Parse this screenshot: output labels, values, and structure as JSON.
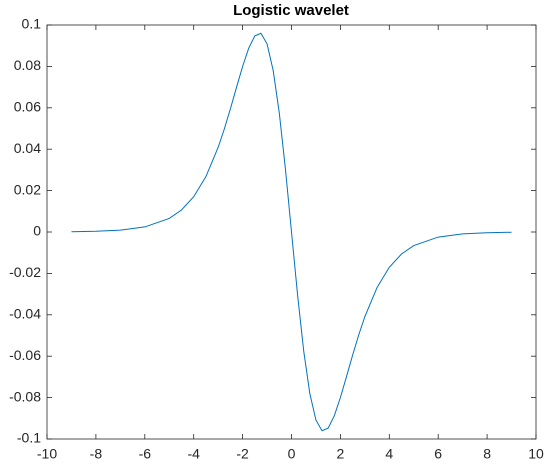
{
  "chart_data": {
    "type": "line",
    "title": "Logistic wavelet",
    "x": [
      -9,
      -8,
      -7,
      -6,
      -5,
      -4.5,
      -4,
      -3.5,
      -3,
      -2.75,
      -2.5,
      -2.25,
      -2,
      -1.75,
      -1.5,
      -1.25,
      -1,
      -0.75,
      -0.5,
      -0.25,
      0,
      0.25,
      0.5,
      0.75,
      1,
      1.25,
      1.5,
      1.75,
      2,
      2.25,
      2.5,
      2.75,
      3,
      3.5,
      4,
      4.5,
      5,
      6,
      7,
      8,
      9
    ],
    "series": [
      {
        "color": "#0072bd",
        "values": [
          0.000123,
          0.000335,
          0.00091,
          0.00245,
          0.00656,
          0.01063,
          0.01703,
          0.02678,
          0.04089,
          0.0497,
          0.05947,
          0.06984,
          0.07996,
          0.0888,
          0.09473,
          0.096,
          0.09086,
          0.07808,
          0.05756,
          0.03061,
          0,
          -0.03061,
          -0.05756,
          -0.07808,
          -0.09086,
          -0.096,
          -0.09473,
          -0.0888,
          -0.07996,
          -0.06984,
          -0.05947,
          -0.0497,
          -0.04089,
          -0.02678,
          -0.01703,
          -0.01063,
          -0.00656,
          -0.00245,
          -0.00091,
          -0.000335,
          -0.000123
        ]
      }
    ],
    "xlim": [
      -10,
      10
    ],
    "xticks": [
      -10,
      -8,
      -6,
      -4,
      -2,
      0,
      2,
      4,
      6,
      8,
      10
    ],
    "ylim": [
      -0.1,
      0.1
    ],
    "yticks": [
      -0.1,
      -0.08,
      -0.06,
      -0.04,
      -0.02,
      0,
      0.02,
      0.04,
      0.06,
      0.08,
      0.1
    ],
    "grid": false
  }
}
